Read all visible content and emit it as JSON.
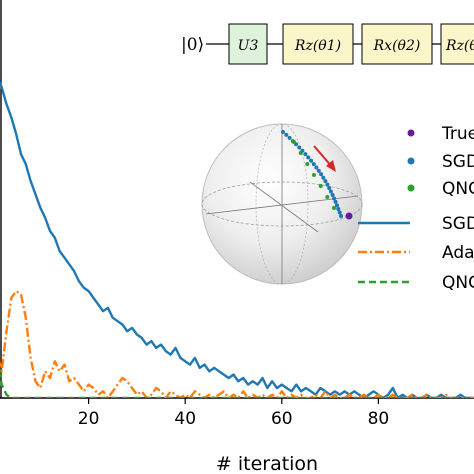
{
  "circuit": {
    "input_state": "|0⟩",
    "gates": [
      "U3",
      "Rz(θ1)",
      "Rx(θ2)",
      "Rz(θ"
    ]
  },
  "chart_data": {
    "type": "line",
    "xlabel": "# iteration",
    "ylabel": "",
    "xlim": [
      0,
      100
    ],
    "ylim": [
      0,
      1
    ],
    "x_ticks": [
      20,
      40,
      60,
      80
    ],
    "grid": false,
    "legend": {
      "placement": "right",
      "entries": [
        "True",
        "SGD",
        "QNG",
        "SGD",
        "Ada",
        "QNG"
      ]
    },
    "colors": {
      "sgd": "#1f77b4",
      "adam": "#ff7f0e",
      "qng": "#2ca02c",
      "true": "#6a1b9a",
      "arrow": "#d62728"
    },
    "series": [
      {
        "name": "SGD",
        "style": "solid",
        "x": [
          0,
          1,
          2,
          3,
          4,
          5,
          6,
          7,
          8,
          9,
          10,
          11,
          12,
          13,
          14,
          15,
          16,
          17,
          18,
          19,
          20,
          21,
          22,
          23,
          24,
          25,
          26,
          27,
          28,
          29,
          30,
          31,
          32,
          33,
          34,
          35,
          36,
          37,
          38,
          39,
          40,
          41,
          42,
          43,
          44,
          45,
          46,
          47,
          48,
          49,
          50,
          51,
          52,
          53,
          54,
          55,
          56,
          57,
          58,
          59,
          60,
          61,
          62,
          63,
          64,
          65,
          66,
          67,
          68,
          69,
          70,
          71,
          72,
          73,
          74,
          75,
          76,
          77,
          78,
          79,
          80,
          81,
          82,
          83,
          84,
          85,
          86,
          87,
          88,
          89,
          90,
          91,
          92,
          93,
          94,
          95,
          96,
          97,
          98,
          99,
          100
        ],
        "y": [
          0.99,
          0.97,
          0.93,
          0.88,
          0.84,
          0.79,
          0.73,
          0.7,
          0.65,
          0.61,
          0.57,
          0.54,
          0.5,
          0.48,
          0.44,
          0.42,
          0.4,
          0.38,
          0.35,
          0.33,
          0.32,
          0.3,
          0.28,
          0.26,
          0.27,
          0.24,
          0.23,
          0.22,
          0.2,
          0.21,
          0.19,
          0.18,
          0.16,
          0.17,
          0.15,
          0.16,
          0.14,
          0.13,
          0.15,
          0.12,
          0.11,
          0.1,
          0.12,
          0.09,
          0.1,
          0.08,
          0.09,
          0.08,
          0.07,
          0.06,
          0.07,
          0.05,
          0.06,
          0.04,
          0.05,
          0.04,
          0.06,
          0.03,
          0.05,
          0.03,
          0.04,
          0.03,
          0.02,
          0.04,
          0.02,
          0.03,
          0.02,
          0.01,
          0.03,
          0.02,
          0.01,
          0.02,
          0.01,
          0.02,
          0.01,
          0.02,
          0.01,
          0.0,
          0.01,
          0.02,
          0.01,
          0.0,
          0.01,
          0.03,
          0.0,
          0.01,
          0.0,
          0.01,
          0.0,
          0.0,
          0.01,
          0.0,
          0.0,
          0.01,
          0.0,
          0.0,
          0.0,
          0.01,
          0.0,
          0.0,
          0.0
        ]
      },
      {
        "name": "Ada",
        "style": "dashdot",
        "x": [
          0,
          1,
          2,
          3,
          4,
          5,
          6,
          7,
          8,
          9,
          10,
          11,
          12,
          13,
          14,
          15,
          16,
          17,
          18,
          19,
          20,
          21,
          22,
          23,
          24,
          25,
          26,
          27,
          28,
          29,
          30,
          31,
          32,
          33,
          34,
          35,
          36,
          37,
          38,
          39,
          40,
          41,
          42,
          43,
          44,
          45,
          46,
          47,
          48,
          49,
          50,
          51,
          52,
          53,
          54,
          55,
          56,
          57,
          58,
          59,
          60,
          61,
          62,
          63,
          64,
          65,
          66,
          67,
          68,
          69,
          70,
          71,
          72,
          73,
          74,
          75,
          76,
          77,
          78,
          79,
          80,
          81,
          82,
          83,
          84,
          85,
          86,
          87,
          88,
          89,
          90,
          91,
          92,
          93,
          94,
          95,
          96,
          97,
          98,
          99,
          100
        ],
        "y": [
          0.22,
          0.14,
          0.08,
          0.2,
          0.3,
          0.32,
          0.31,
          0.24,
          0.12,
          0.05,
          0.03,
          0.08,
          0.06,
          0.11,
          0.08,
          0.1,
          0.05,
          0.06,
          0.04,
          0.02,
          0.04,
          0.03,
          0.01,
          0.02,
          0.0,
          0.02,
          0.04,
          0.06,
          0.05,
          0.03,
          0.01,
          0.02,
          0.0,
          0.01,
          0.03,
          0.02,
          0.0,
          0.02,
          0.01,
          0.0,
          0.01,
          0.0,
          0.02,
          0.01,
          0.0,
          0.01,
          0.0,
          0.01,
          0.02,
          0.0,
          0.01,
          0.0,
          0.02,
          0.0,
          0.01,
          0.0,
          0.01,
          0.0,
          0.01,
          0.0,
          0.02,
          0.0,
          0.01,
          0.0,
          0.01,
          0.0,
          0.0,
          0.01,
          0.0,
          0.02,
          0.0,
          0.01,
          0.0,
          0.0,
          0.01,
          0.0,
          0.0,
          0.01,
          0.0,
          0.0,
          0.01,
          0.0,
          0.0,
          0.01,
          0.0,
          0.0,
          0.0,
          0.01,
          0.0,
          0.0,
          0.01,
          0.0,
          0.0,
          0.0,
          0.01,
          0.0,
          0.0,
          0.0,
          0.0,
          0.0,
          0.0
        ]
      },
      {
        "name": "QNG",
        "style": "dashed",
        "x": [
          0,
          1,
          2,
          3,
          4,
          5,
          6,
          7,
          8,
          9,
          10,
          11,
          12,
          13,
          14,
          15,
          16,
          17,
          18,
          19,
          20,
          21,
          22,
          23,
          24,
          25,
          26,
          27,
          28,
          29,
          30,
          31,
          32,
          33,
          34,
          35,
          36,
          37,
          38,
          39,
          40,
          41,
          42,
          43,
          44,
          45,
          46,
          47,
          48,
          49,
          50,
          51,
          52,
          53,
          54,
          55,
          56,
          57,
          58,
          59,
          60,
          61,
          62,
          63,
          64,
          65,
          66,
          67,
          68,
          69,
          70,
          71,
          72,
          73,
          74,
          75,
          76,
          77,
          78,
          79,
          80,
          81,
          82,
          83,
          84,
          85,
          86,
          87,
          88,
          89,
          90,
          91,
          92,
          93,
          94,
          95,
          96,
          97,
          98,
          99,
          100
        ],
        "y": [
          0.28,
          0.12,
          0.04,
          0.01,
          0.0,
          0.0,
          0.0,
          0.0,
          0.0,
          0.0,
          0.0,
          0.0,
          0.0,
          0.0,
          0.0,
          0.0,
          0.0,
          0.0,
          0.0,
          0.0,
          0.0,
          0.0,
          0.0,
          0.0,
          0.0,
          0.0,
          0.0,
          0.0,
          0.0,
          0.0,
          0.0,
          0.0,
          0.0,
          0.0,
          0.0,
          0.0,
          0.0,
          0.0,
          0.0,
          0.0,
          0.0,
          0.0,
          0.0,
          0.0,
          0.0,
          0.0,
          0.0,
          0.0,
          0.0,
          0.0,
          0.0,
          0.0,
          0.0,
          0.0,
          0.0,
          0.0,
          0.0,
          0.0,
          0.0,
          0.0,
          0.0,
          0.0,
          0.0,
          0.0,
          0.0,
          0.0,
          0.0,
          0.0,
          0.0,
          0.0,
          0.0,
          0.0,
          0.0,
          0.0,
          0.0,
          0.0,
          0.0,
          0.0,
          0.0,
          0.0,
          0.0,
          0.0,
          0.0,
          0.0,
          0.0,
          0.0,
          0.0,
          0.0,
          0.0,
          0.0,
          0.0,
          0.0,
          0.0,
          0.0,
          0.0,
          0.0,
          0.0,
          0.0,
          0.0,
          0.0,
          0.0
        ]
      }
    ]
  }
}
